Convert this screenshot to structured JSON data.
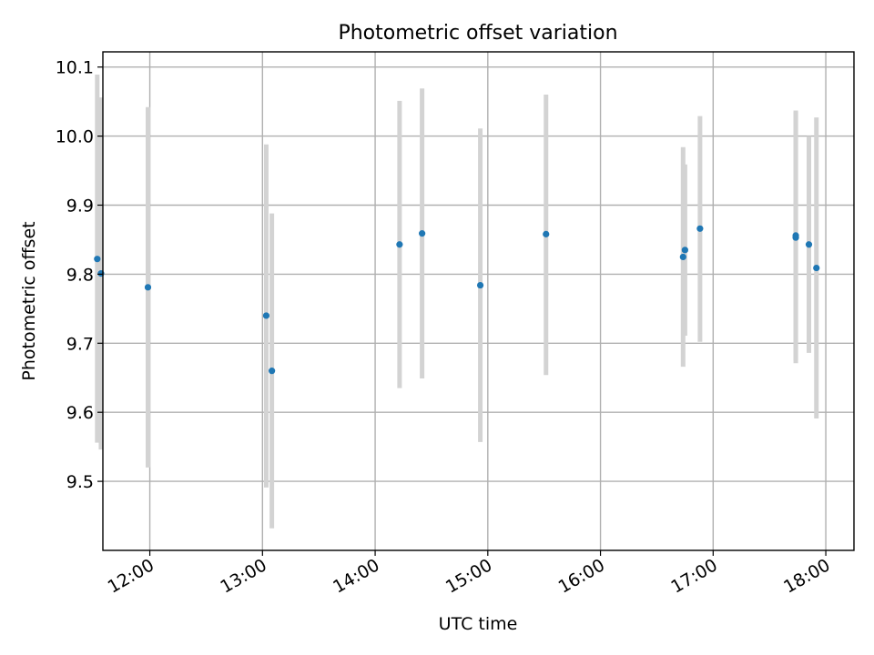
{
  "chart_data": {
    "type": "scatter",
    "title": "Photometric offset variation",
    "xlabel": "UTC time",
    "ylabel": "Photometric offset",
    "xlim": [
      "11:35",
      "18:15"
    ],
    "ylim": [
      9.4,
      10.122
    ],
    "x_ticks": [
      "12:00",
      "13:00",
      "14:00",
      "15:00",
      "16:00",
      "17:00",
      "18:00"
    ],
    "y_ticks": [
      "9.5",
      "9.6",
      "9.7",
      "9.8",
      "9.9",
      "10.0",
      "10.1"
    ],
    "grid": true,
    "marker_color": "#1f77b4",
    "errorbar_color": "#d3d3d3",
    "points": [
      {
        "time": "11:32",
        "y": 9.822,
        "ylow": 9.556,
        "yhigh": 10.089
      },
      {
        "time": "11:34",
        "y": 9.801,
        "ylow": 9.546,
        "yhigh": 10.056
      },
      {
        "time": "11:59",
        "y": 9.781,
        "ylow": 9.52,
        "yhigh": 10.042
      },
      {
        "time": "13:02",
        "y": 9.74,
        "ylow": 9.491,
        "yhigh": 9.988
      },
      {
        "time": "13:05",
        "y": 9.66,
        "ylow": 9.432,
        "yhigh": 9.888
      },
      {
        "time": "14:13",
        "y": 9.843,
        "ylow": 9.635,
        "yhigh": 10.051
      },
      {
        "time": "14:25",
        "y": 9.859,
        "ylow": 9.649,
        "yhigh": 10.069
      },
      {
        "time": "14:56",
        "y": 9.784,
        "ylow": 9.557,
        "yhigh": 10.011
      },
      {
        "time": "15:31",
        "y": 9.858,
        "ylow": 9.654,
        "yhigh": 10.06
      },
      {
        "time": "16:44",
        "y": 9.825,
        "ylow": 9.666,
        "yhigh": 9.984
      },
      {
        "time": "16:45",
        "y": 9.835,
        "ylow": 9.711,
        "yhigh": 9.959
      },
      {
        "time": "16:53",
        "y": 9.866,
        "ylow": 9.702,
        "yhigh": 10.029
      },
      {
        "time": "17:44",
        "y": 9.853,
        "ylow": 9.671,
        "yhigh": 10.035
      },
      {
        "time": "17:44",
        "y": 9.856,
        "ylow": 9.675,
        "yhigh": 10.037
      },
      {
        "time": "17:51",
        "y": 9.843,
        "ylow": 9.686,
        "yhigh": 10.0
      },
      {
        "time": "17:55",
        "y": 9.809,
        "ylow": 9.591,
        "yhigh": 10.027
      }
    ]
  }
}
